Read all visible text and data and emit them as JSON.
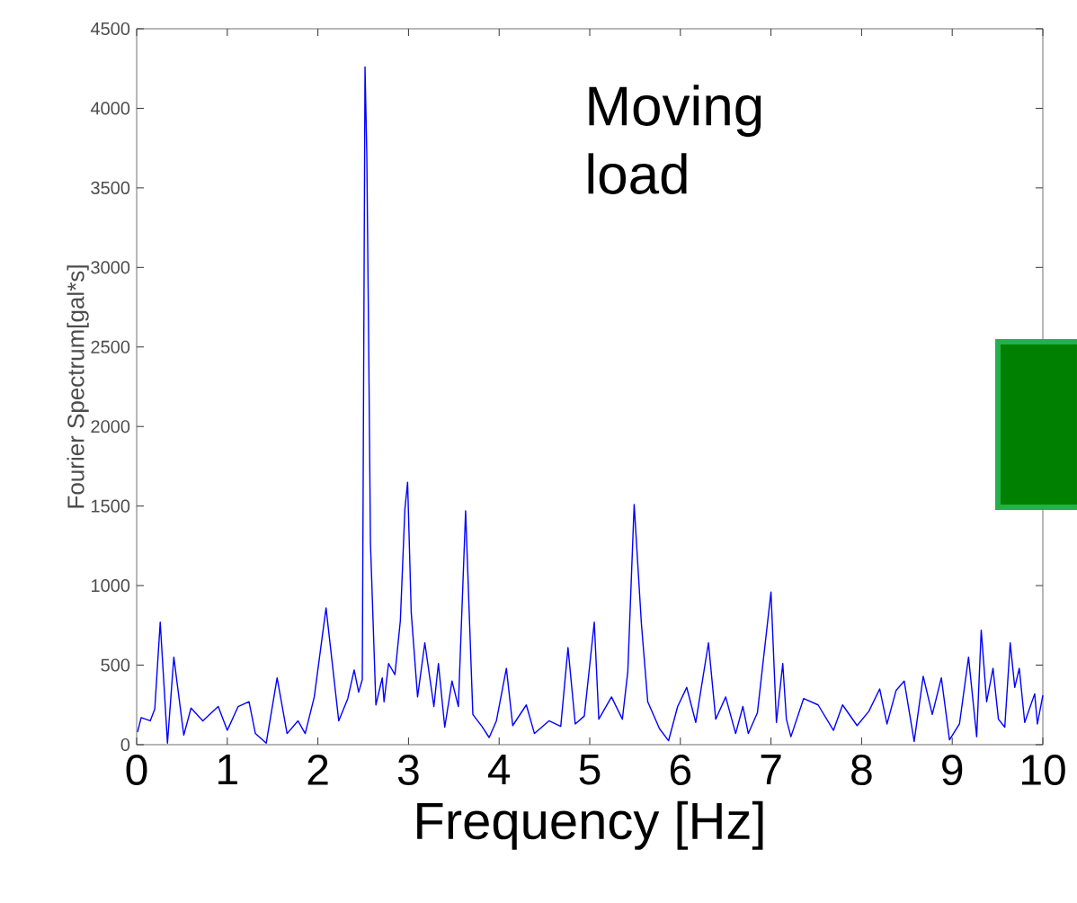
{
  "chart_data": {
    "type": "line",
    "xlabel": "Frequency [Hz]",
    "ylabel": "Fourier Spectrum[gal*s]",
    "annotations": [
      "Moving load"
    ],
    "xlim": [
      0,
      10
    ],
    "ylim": [
      0,
      4500
    ],
    "xticks": [
      0,
      1,
      2,
      3,
      4,
      5,
      6,
      7,
      8,
      9,
      10
    ],
    "yticks": [
      0,
      500,
      1000,
      1500,
      2000,
      2500,
      3000,
      3500,
      4000,
      4500
    ],
    "series": [
      {
        "color": "#0000ff",
        "x": [
          0.01,
          0.05,
          0.15,
          0.2,
          0.26,
          0.34,
          0.41,
          0.52,
          0.6,
          0.73,
          0.9,
          1.0,
          1.12,
          1.24,
          1.31,
          1.43,
          1.55,
          1.66,
          1.78,
          1.86,
          1.96,
          2.09,
          2.23,
          2.33,
          2.4,
          2.45,
          2.49,
          2.52,
          2.54,
          2.56,
          2.58,
          2.64,
          2.71,
          2.73,
          2.78,
          2.85,
          2.91,
          2.96,
          2.99,
          3.03,
          3.1,
          3.18,
          3.28,
          3.33,
          3.4,
          3.48,
          3.55,
          3.63,
          3.71,
          3.81,
          3.89,
          3.97,
          4.08,
          4.15,
          4.3,
          4.39,
          4.55,
          4.68,
          4.76,
          4.84,
          4.94,
          5.05,
          5.1,
          5.24,
          5.36,
          5.42,
          5.49,
          5.57,
          5.64,
          5.77,
          5.87,
          5.97,
          6.07,
          6.17,
          6.31,
          6.39,
          6.5,
          6.61,
          6.69,
          6.75,
          6.85,
          7.0,
          7.06,
          7.13,
          7.17,
          7.22,
          7.36,
          7.52,
          7.69,
          7.79,
          7.95,
          8.08,
          8.2,
          8.28,
          8.38,
          8.47,
          8.58,
          8.68,
          8.78,
          8.88,
          8.97,
          9.08,
          9.18,
          9.27,
          9.32,
          9.38,
          9.45,
          9.51,
          9.58,
          9.64,
          9.69,
          9.74,
          9.8,
          9.91,
          9.94,
          10.0
        ],
        "values": [
          80,
          170,
          150,
          225,
          770,
          10,
          550,
          60,
          230,
          150,
          240,
          90,
          240,
          270,
          70,
          10,
          420,
          70,
          150,
          70,
          300,
          860,
          150,
          290,
          470,
          330,
          410,
          4260,
          3700,
          2550,
          1270,
          250,
          420,
          270,
          510,
          440,
          780,
          1480,
          1650,
          830,
          300,
          640,
          240,
          510,
          110,
          400,
          240,
          1470,
          190,
          115,
          45,
          150,
          480,
          120,
          250,
          70,
          150,
          115,
          610,
          130,
          180,
          770,
          160,
          300,
          160,
          460,
          1510,
          760,
          270,
          100,
          25,
          240,
          360,
          140,
          640,
          160,
          300,
          70,
          240,
          70,
          200,
          960,
          140,
          510,
          160,
          50,
          290,
          250,
          90,
          250,
          120,
          210,
          350,
          130,
          340,
          400,
          20,
          430,
          190,
          420,
          30,
          130,
          550,
          50,
          720,
          270,
          480,
          160,
          110,
          640,
          360,
          480,
          140,
          320,
          130,
          310
        ]
      }
    ]
  }
}
